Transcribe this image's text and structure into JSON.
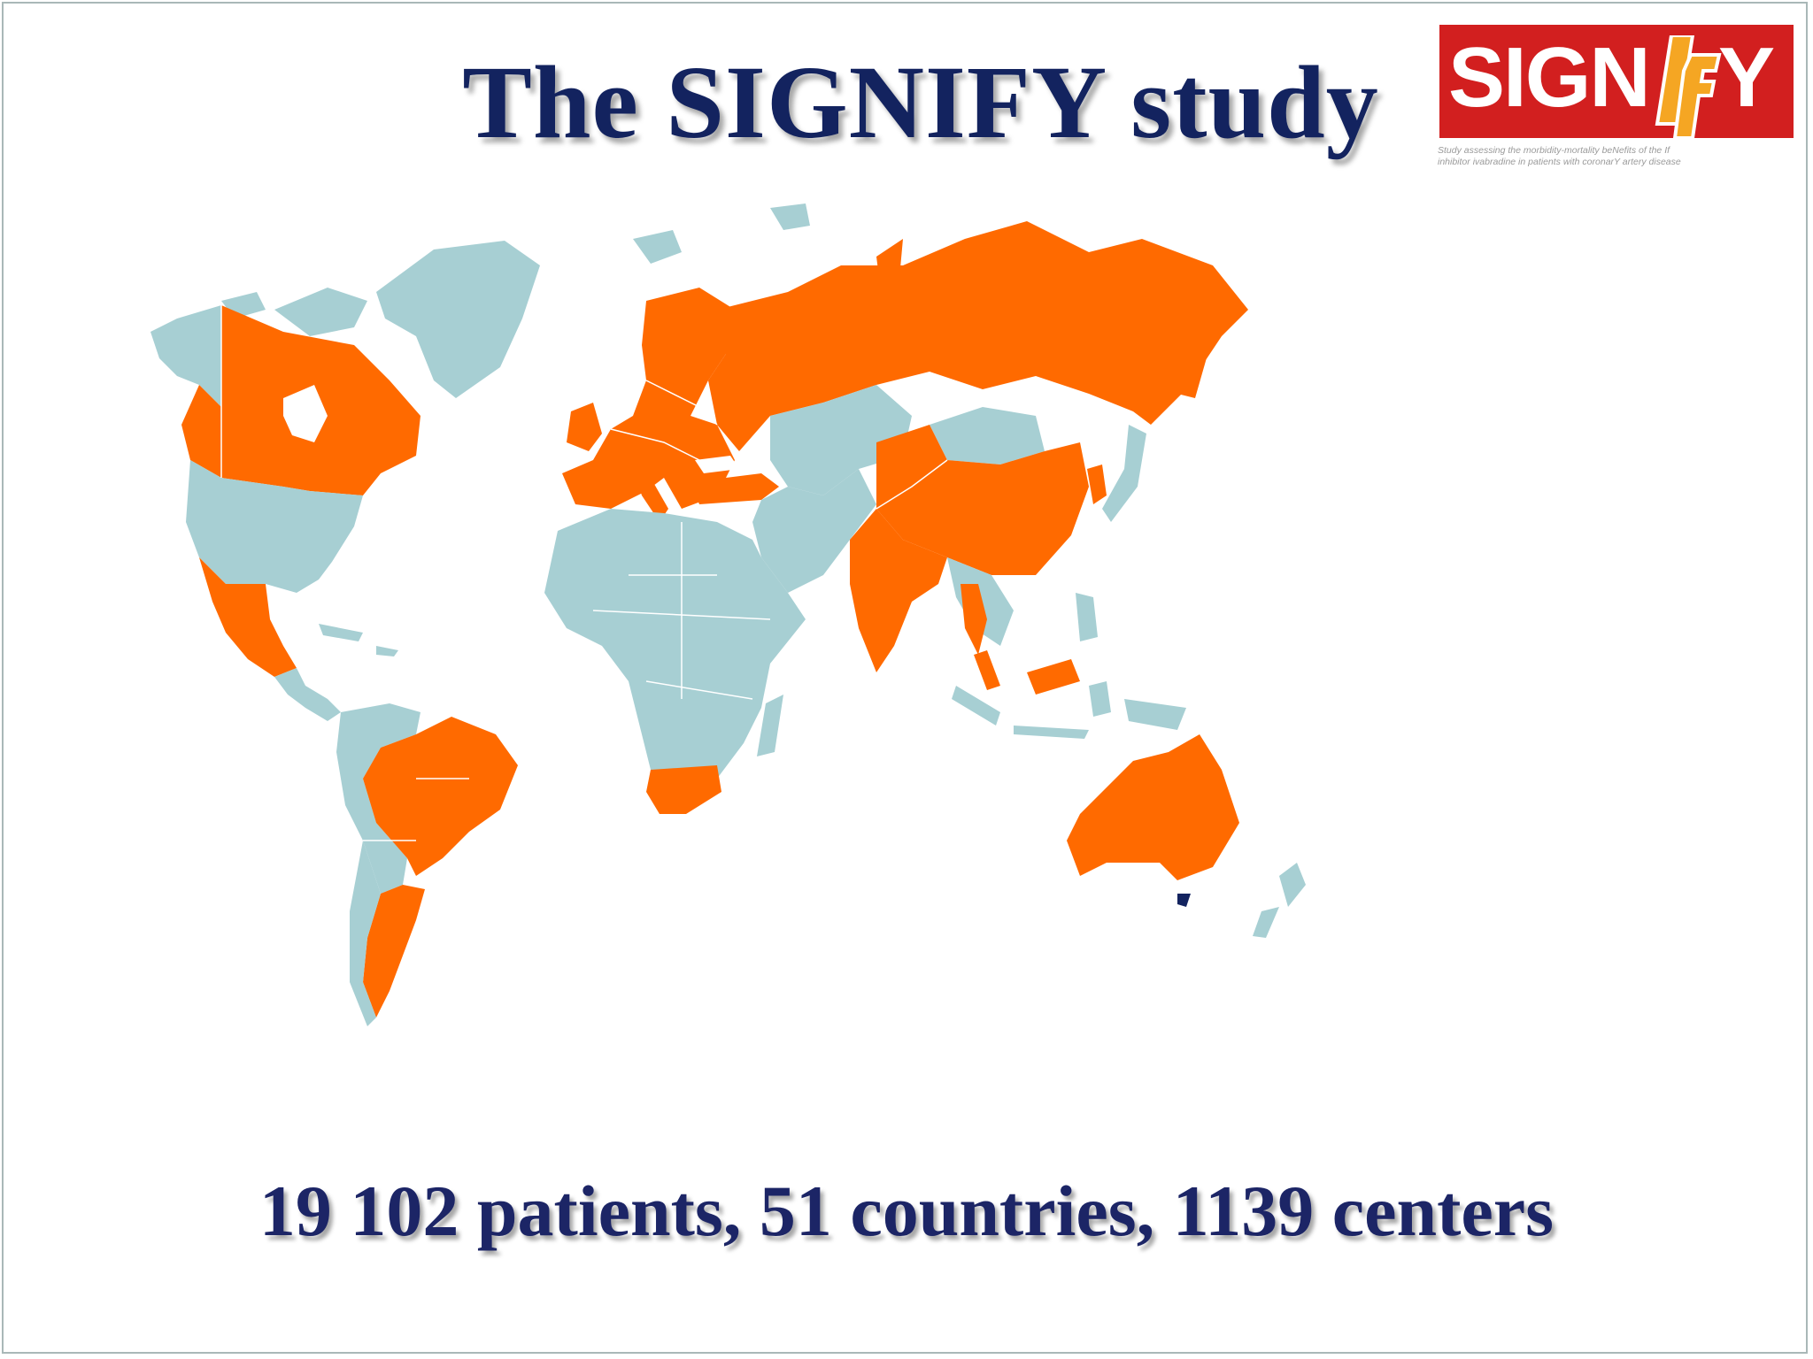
{
  "title": "The SIGNIFY study",
  "logo": {
    "word_left": "SIGN",
    "word_right": "Y",
    "if_glyph": "If",
    "tagline_1": "Study assessing the morbidity-mortality beNefits of the If",
    "tagline_2": "inhibitor ivabradine in patients with coronarY artery disease"
  },
  "stats": "19 102 patients, 51 countries, 1139 centers",
  "colors": {
    "participating": "#ff6a00",
    "non_participating": "#a7cfd3",
    "title_text": "#13235f",
    "logo_red": "#d21f1f",
    "logo_if": "#f5a623"
  },
  "legend_meaning": {
    "orange": "participating country",
    "light_blue": "non-participating country"
  },
  "map_regions": [
    {
      "name": "Greenland",
      "status": "non-participating"
    },
    {
      "name": "Alaska",
      "status": "non-participating"
    },
    {
      "name": "Canada",
      "status": "participating"
    },
    {
      "name": "USA",
      "status": "non-participating"
    },
    {
      "name": "Mexico",
      "status": "participating"
    },
    {
      "name": "Central America",
      "status": "non-participating"
    },
    {
      "name": "Colombia-Venezuela-Peru-Bolivia",
      "status": "non-participating"
    },
    {
      "name": "Brazil",
      "status": "participating"
    },
    {
      "name": "Argentina",
      "status": "participating"
    },
    {
      "name": "Chile",
      "status": "non-participating"
    },
    {
      "name": "Iceland",
      "status": "non-participating"
    },
    {
      "name": "Europe",
      "status": "participating"
    },
    {
      "name": "Russia",
      "status": "participating"
    },
    {
      "name": "Turkey",
      "status": "participating"
    },
    {
      "name": "Africa",
      "status": "non-participating"
    },
    {
      "name": "South Africa",
      "status": "participating"
    },
    {
      "name": "Madagascar",
      "status": "non-participating"
    },
    {
      "name": "Middle East",
      "status": "non-participating"
    },
    {
      "name": "Central Asia",
      "status": "non-participating"
    },
    {
      "name": "India",
      "status": "participating"
    },
    {
      "name": "China",
      "status": "participating"
    },
    {
      "name": "Mongolia",
      "status": "non-participating"
    },
    {
      "name": "Korea",
      "status": "participating"
    },
    {
      "name": "Japan",
      "status": "non-participating"
    },
    {
      "name": "Thailand",
      "status": "participating"
    },
    {
      "name": "Malaysia",
      "status": "participating"
    },
    {
      "name": "Indonesia",
      "status": "non-participating"
    },
    {
      "name": "Philippines",
      "status": "non-participating"
    },
    {
      "name": "Australia",
      "status": "participating"
    },
    {
      "name": "New Zealand",
      "status": "non-participating"
    }
  ]
}
